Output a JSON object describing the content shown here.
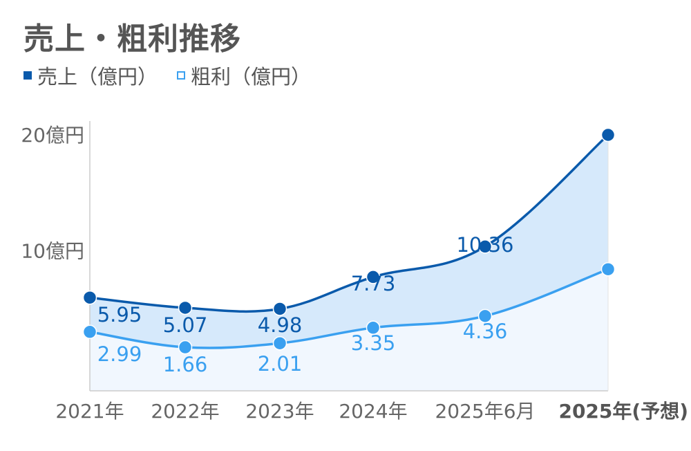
{
  "chart_data": {
    "type": "line",
    "title": "売上・粗利推移",
    "categories": [
      "2021年",
      "2022年",
      "2023年",
      "2024年",
      "2025年6月",
      "2025年(予想)"
    ],
    "highlight_category_index": 5,
    "y_ticks": [
      {
        "value": 10,
        "label": "10億円"
      },
      {
        "value": 20,
        "label": "20億円"
      }
    ],
    "ylim": [
      -2.1,
      20
    ],
    "grid": false,
    "legend_position": "top-left",
    "series": [
      {
        "name": "売上（億円）",
        "values": [
          5.95,
          5.07,
          4.98,
          7.73,
          10.36,
          20.0
        ],
        "labels": [
          "5.95",
          "5.07",
          "4.98",
          "7.73",
          "10.36",
          ""
        ],
        "color": "#0a5aab",
        "marker": "filled"
      },
      {
        "name": "粗利（億円）",
        "values": [
          2.99,
          1.66,
          2.01,
          3.35,
          4.36,
          8.4
        ],
        "labels": [
          "2.99",
          "1.66",
          "2.01",
          "3.35",
          "4.36",
          ""
        ],
        "color": "#3aa0f0",
        "marker": "hollow"
      }
    ],
    "fill_between_color": "#d6e9fb",
    "fill_below_color": "#f1f7fe",
    "axis_color": "#cccccc"
  }
}
